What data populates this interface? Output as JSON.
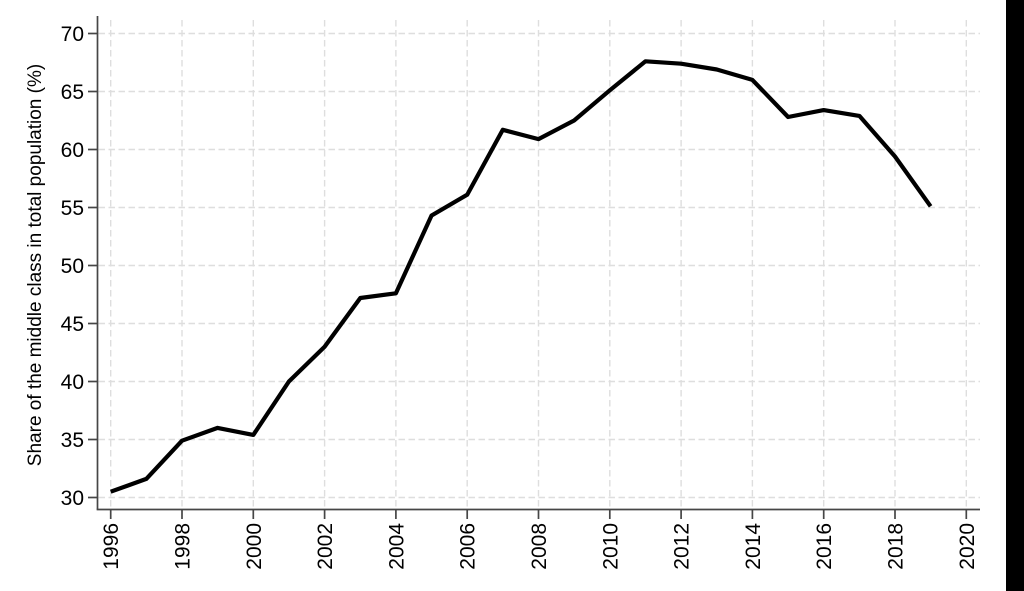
{
  "chart_data": {
    "type": "line",
    "title": "",
    "xlabel": "",
    "ylabel": "Share of the middle class in total population (%)",
    "x": [
      1996,
      1997,
      1998,
      1999,
      2000,
      2001,
      2002,
      2003,
      2004,
      2005,
      2006,
      2007,
      2008,
      2009,
      2010,
      2011,
      2012,
      2013,
      2014,
      2015,
      2016,
      2017,
      2018,
      2019
    ],
    "series": [
      {
        "name": "Share of the middle class in total population (%)",
        "values": [
          30.5,
          31.6,
          34.9,
          36.0,
          35.4,
          40.0,
          43.0,
          47.2,
          47.6,
          54.3,
          56.1,
          61.7,
          60.9,
          62.5,
          65.1,
          67.6,
          67.4,
          66.9,
          66.0,
          62.8,
          63.4,
          62.9,
          59.4,
          55.1
        ]
      }
    ],
    "x_ticks": [
      1996,
      1998,
      2000,
      2002,
      2004,
      2006,
      2008,
      2010,
      2012,
      2014,
      2016,
      2018,
      2020
    ],
    "y_ticks": [
      30,
      35,
      40,
      45,
      50,
      55,
      60,
      65,
      70
    ],
    "xlim": [
      1995.6,
      2020.4
    ],
    "ylim": [
      29.0,
      71.5
    ],
    "grid": true,
    "grid_style": "dashed",
    "legend_position": "none"
  },
  "colors": {
    "line": "#000000",
    "axis": "#464646",
    "grid": "#dedede",
    "text": "#000000",
    "background": "#ffffff",
    "right_edge_band": "#000000"
  }
}
